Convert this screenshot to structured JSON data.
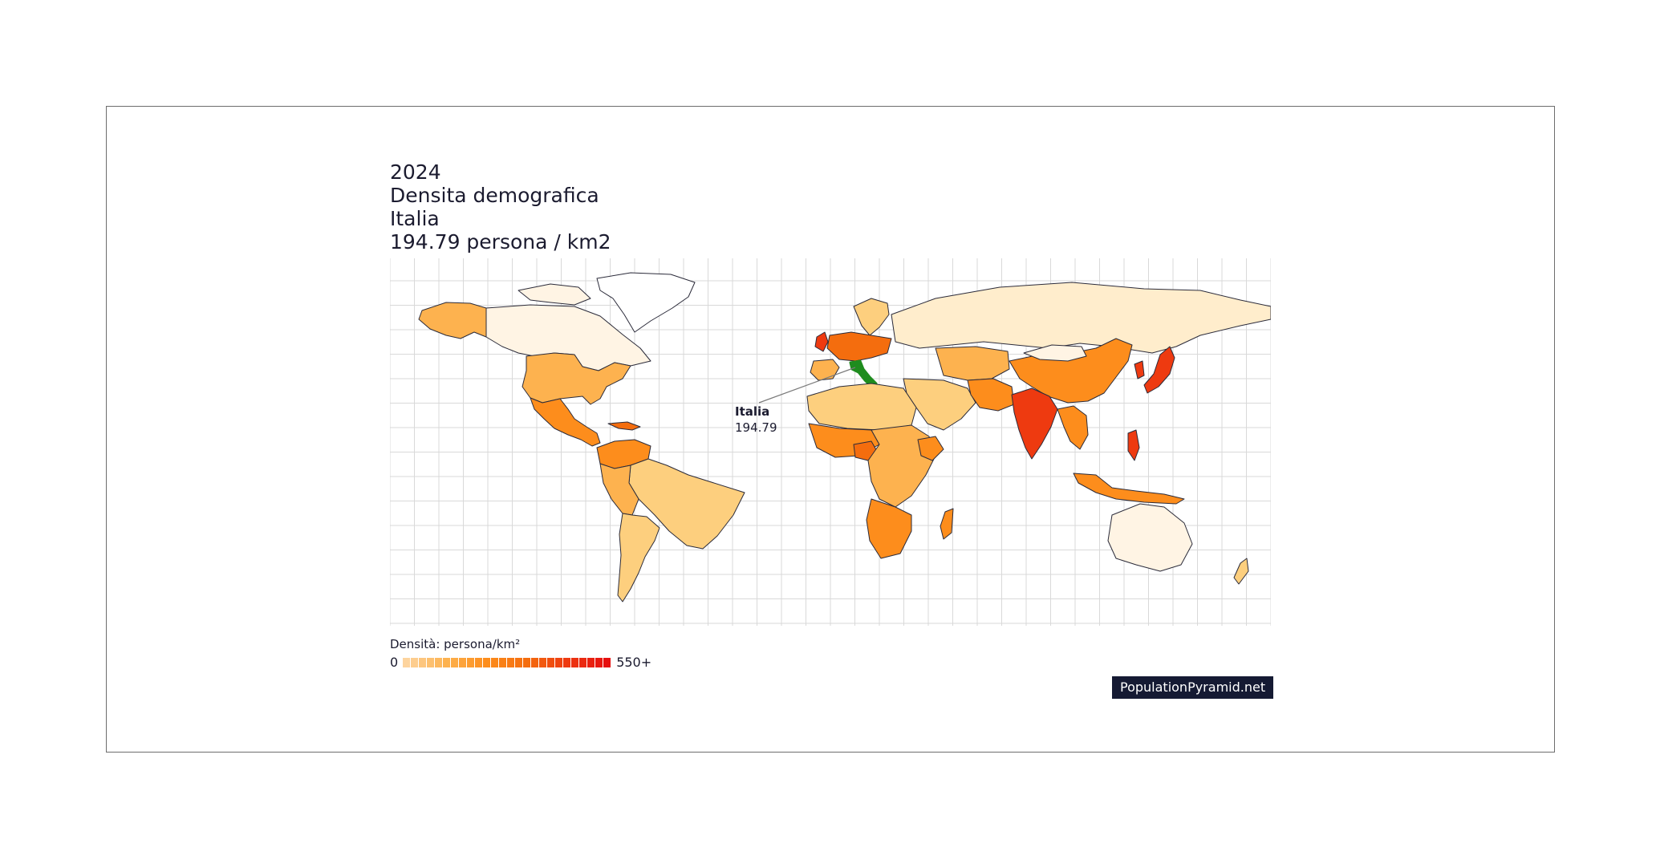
{
  "header": {
    "year": "2024",
    "metric": "Densita demografica",
    "country": "Italia",
    "value_line": "194.79 persona / km2"
  },
  "callout": {
    "country": "Italia",
    "value": "194.79",
    "value_numeric": 194.79
  },
  "legend": {
    "title": "Densità: persona/km²",
    "min_label": "0",
    "max_label": "550+",
    "scale_min": 0,
    "scale_max": 550,
    "colors": [
      "#fdd49e",
      "#fdb24f",
      "#fd8d1c",
      "#f46d0e",
      "#ee3a10",
      "#e60f0f"
    ]
  },
  "brand": {
    "label": "PopulationPyramid.net"
  },
  "map": {
    "highlight_color": "#1e8c1e",
    "ocean_color": "#ffffff",
    "grid_color": "#d9d9d9",
    "country_stroke": "#2b2b3a",
    "highlighted_country": "Italia"
  }
}
